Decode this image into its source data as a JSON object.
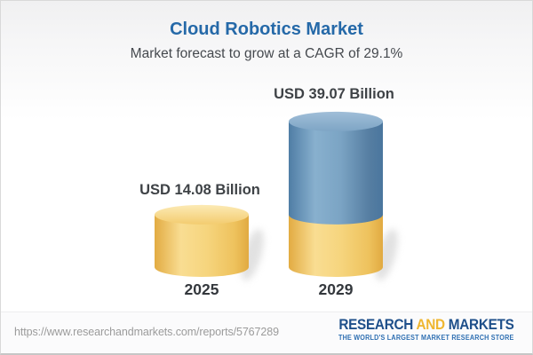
{
  "header": {
    "title": "Cloud Robotics Market",
    "subtitle": "Market forecast to grow at a CAGR of 29.1%",
    "title_color": "#2569a8"
  },
  "chart_data": {
    "type": "bar",
    "style": "3d-cylinder",
    "title": "Cloud Robotics Market",
    "subtitle": "Market forecast to grow at a CAGR of 29.1%",
    "categories": [
      "2025",
      "2029"
    ],
    "values": [
      14.08,
      39.07
    ],
    "value_labels": [
      "USD 14.08 Billion",
      "USD 39.07 Billion"
    ],
    "unit": "USD Billion",
    "cagr_percent": 29.1,
    "ylim": [
      0,
      40
    ],
    "grid": false,
    "legend": "none",
    "bars": [
      {
        "category": "2025",
        "segments": [
          {
            "from": 0,
            "to": 14.08,
            "palette": "gold"
          }
        ]
      },
      {
        "category": "2029",
        "segments": [
          {
            "from": 0,
            "to": 14.08,
            "palette": "gold"
          },
          {
            "from": 14.08,
            "to": 39.07,
            "palette": "blue"
          }
        ]
      }
    ],
    "palettes": {
      "gold": {
        "body": [
          "#e2ab42",
          "#f9dd92",
          "#f6d57e",
          "#eec25d",
          "#e1aa41"
        ],
        "top": [
          "#fceab5",
          "#f3cc6f"
        ]
      },
      "blue": {
        "body": [
          "#4f7da5",
          "#88b0ce",
          "#7ba4c4",
          "#567ea2",
          "#4a769e"
        ],
        "top": [
          "#a0bed8",
          "#7ea5c5"
        ]
      }
    }
  },
  "footer": {
    "url": "https://www.researchandmarkets.com/reports/5767289",
    "logo": {
      "word1": "RESEARCH",
      "word2": "AND",
      "word3": "MARKETS",
      "tagline": "THE WORLD'S LARGEST MARKET RESEARCH STORE",
      "navy": "#1e4f8a",
      "gold": "#efb62f",
      "tagline_color": "#2e6fb2"
    }
  }
}
